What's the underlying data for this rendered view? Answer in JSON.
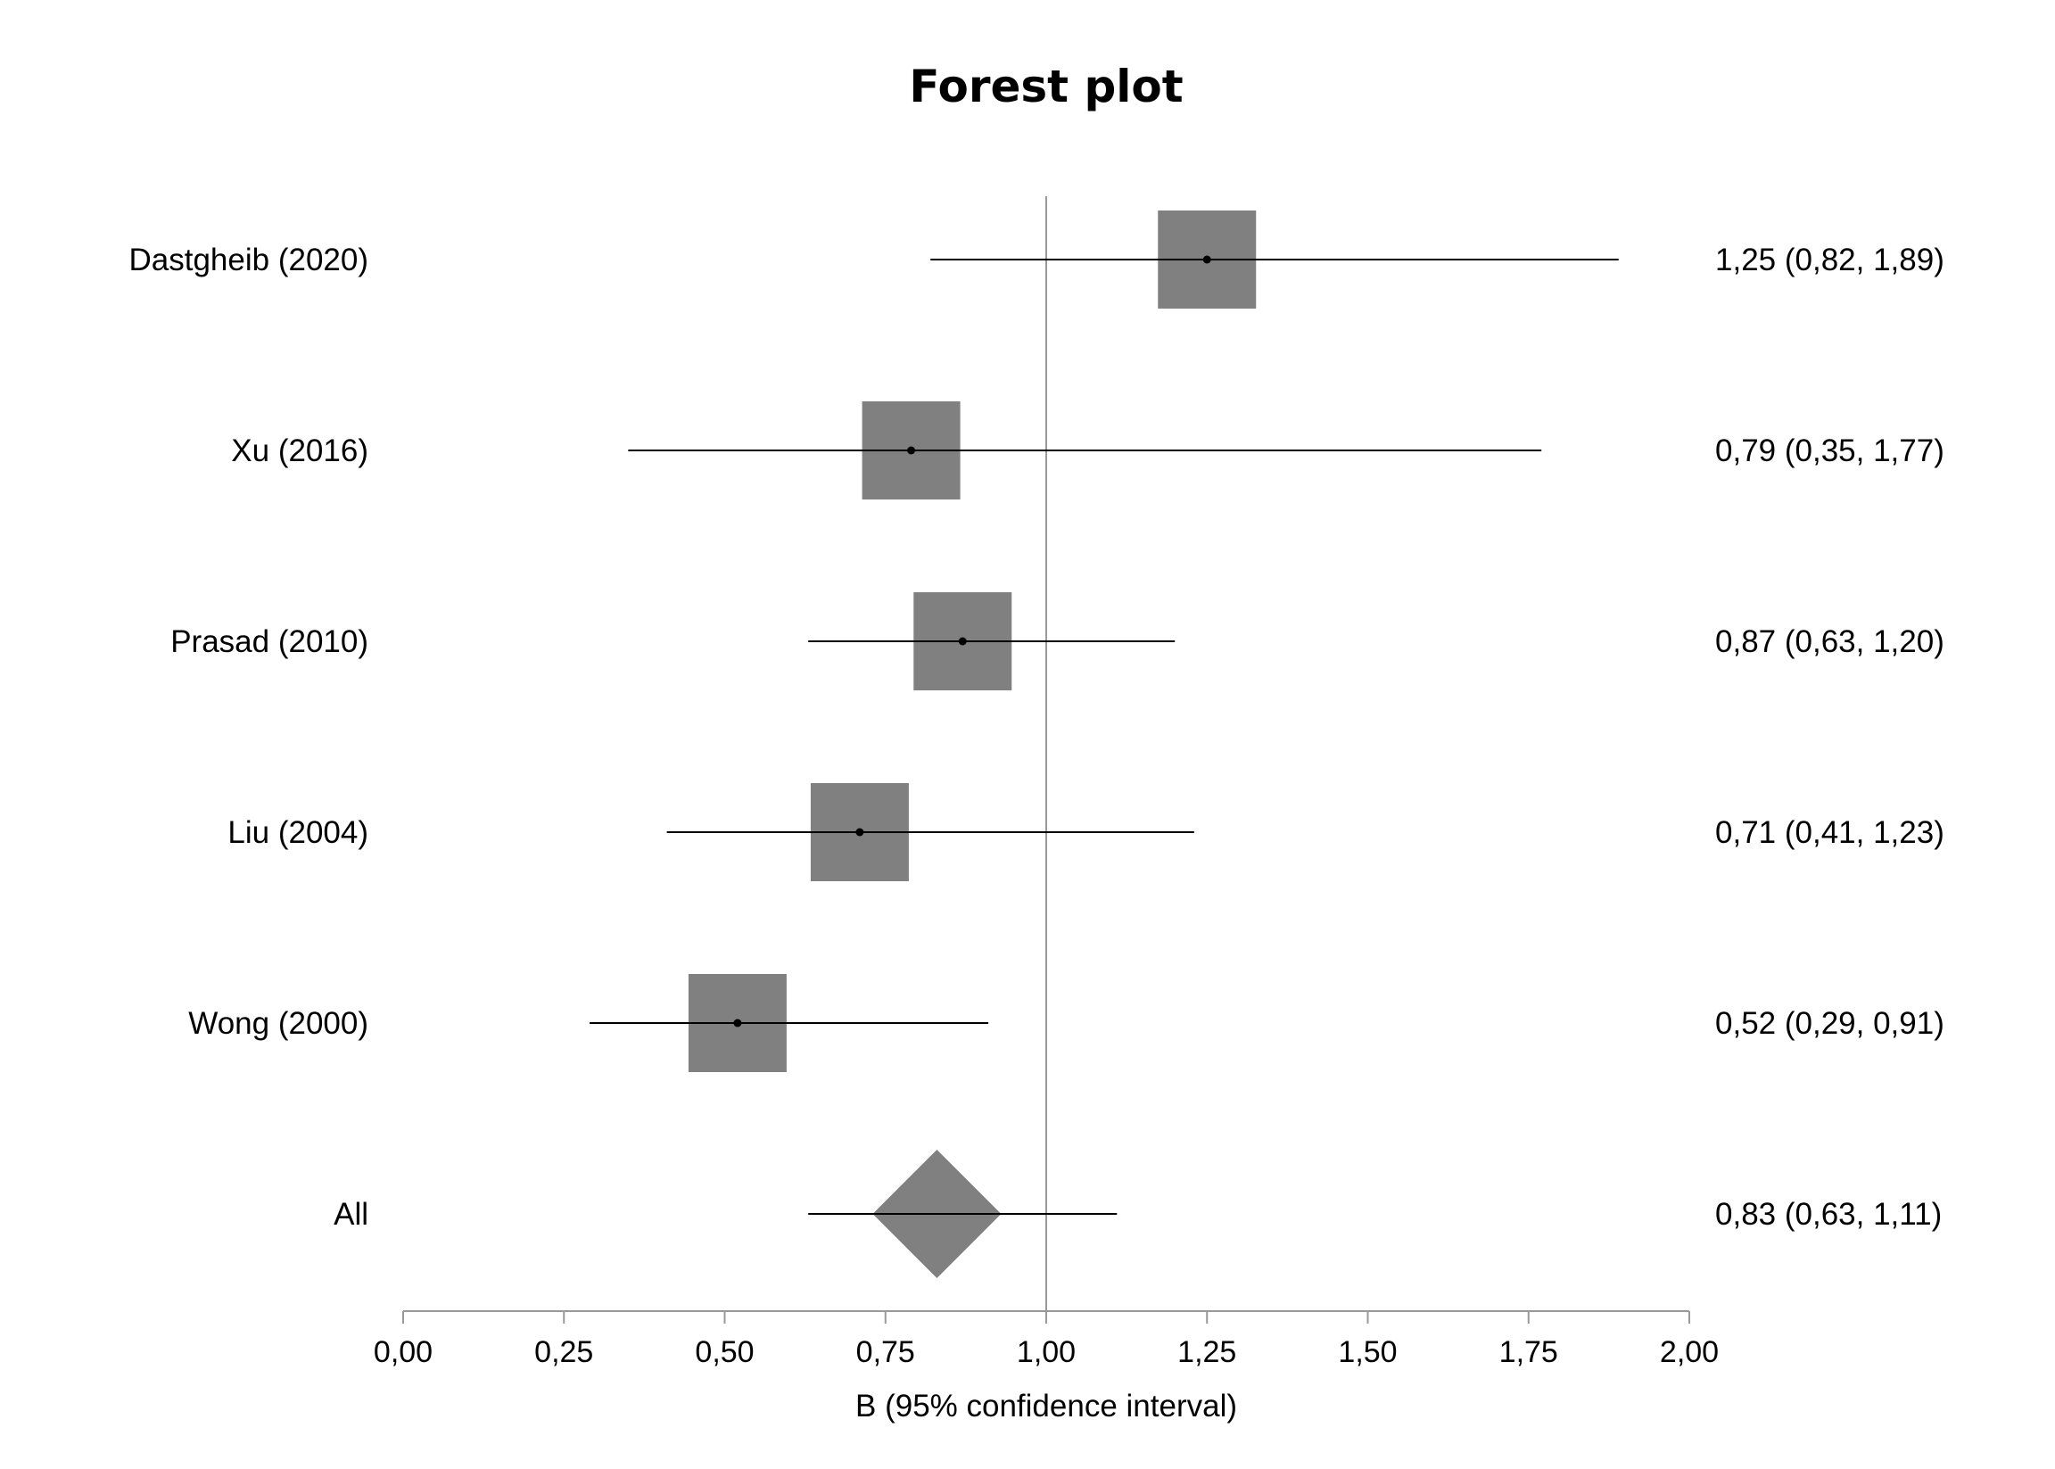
{
  "chart_data": {
    "type": "forest",
    "title": "Forest plot",
    "xlabel": "B (95% confidence interval)",
    "xlim": [
      0,
      2
    ],
    "ticks": [
      0,
      0.25,
      0.5,
      0.75,
      1,
      1.25,
      1.5,
      1.75,
      2
    ],
    "tick_labels": [
      "0,00",
      "0,25",
      "0,50",
      "0,75",
      "1,00",
      "1,25",
      "1,50",
      "1,75",
      "2,00"
    ],
    "reference_line": 1,
    "studies": [
      {
        "label": "Dastgheib (2020)",
        "estimate": 1.25,
        "lower": 0.82,
        "upper": 1.89,
        "ci_text": "1,25 (0,82, 1,89)"
      },
      {
        "label": "Xu (2016)",
        "estimate": 0.79,
        "lower": 0.35,
        "upper": 1.77,
        "ci_text": "0,79 (0,35, 1,77)"
      },
      {
        "label": "Prasad (2010)",
        "estimate": 0.87,
        "lower": 0.63,
        "upper": 1.2,
        "ci_text": "0,87 (0,63, 1,20)"
      },
      {
        "label": "Liu (2004)",
        "estimate": 0.71,
        "lower": 0.41,
        "upper": 1.23,
        "ci_text": "0,71 (0,41, 1,23)"
      },
      {
        "label": "Wong (2000)",
        "estimate": 0.52,
        "lower": 0.29,
        "upper": 0.91,
        "ci_text": "0,52 (0,29, 0,91)"
      }
    ],
    "pooled": {
      "label": "All",
      "estimate": 0.83,
      "lower": 0.63,
      "upper": 1.11,
      "ci_text": "0,83 (0,63, 1,11)"
    },
    "colors": {
      "marker": "#808080",
      "line": "#000000",
      "reference": "#999999",
      "axis": "#999999"
    }
  }
}
